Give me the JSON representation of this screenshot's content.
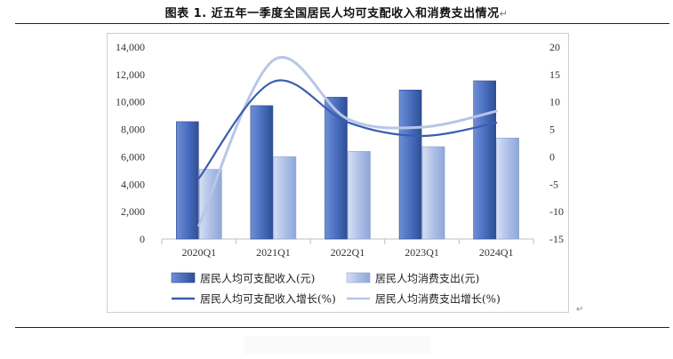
{
  "page": {
    "title": "图表 1.  近五年一季度全国居民人均可支配收入和消费支出情况",
    "return_mark": "↵"
  },
  "chart_data": {
    "type": "bar+line",
    "title": "图表 1.  近五年一季度全国居民人均可支配收入和消费支出情况",
    "categories": [
      "2020Q1",
      "2021Q1",
      "2022Q1",
      "2023Q1",
      "2024Q1"
    ],
    "left_axis": {
      "ylim": [
        0,
        14000
      ],
      "ticks": [
        "0",
        "2,000",
        "4,000",
        "6,000",
        "8,000",
        "10,000",
        "12,000",
        "14,000"
      ]
    },
    "right_axis": {
      "ylim": [
        -15,
        20
      ],
      "ticks": [
        "-15",
        "-10",
        "-5",
        "0",
        "5",
        "10",
        "15",
        "20"
      ]
    },
    "series": [
      {
        "name": "居民人均可支配收入(元)",
        "kind": "bar",
        "axis": "left",
        "color": "#4a6fc0",
        "values": [
          8561,
          9730,
          10345,
          10870,
          11539
        ]
      },
      {
        "name": "居民人均消费支出(元)",
        "kind": "bar",
        "axis": "left",
        "color": "#aec0e6",
        "values": [
          5082,
          6003,
          6393,
          6738,
          7370
        ]
      },
      {
        "name": "居民人均可支配收入增长(%)",
        "kind": "line",
        "axis": "right",
        "color": "#3a5dae",
        "values": [
          -3.9,
          13.7,
          6.3,
          3.8,
          6.2
        ]
      },
      {
        "name": "居民人均消费支出增长(%)",
        "kind": "line",
        "axis": "right",
        "color": "#b7c6e8",
        "values": [
          -12.5,
          17.6,
          6.9,
          5.4,
          8.3
        ]
      }
    ],
    "legend_position": "bottom"
  }
}
